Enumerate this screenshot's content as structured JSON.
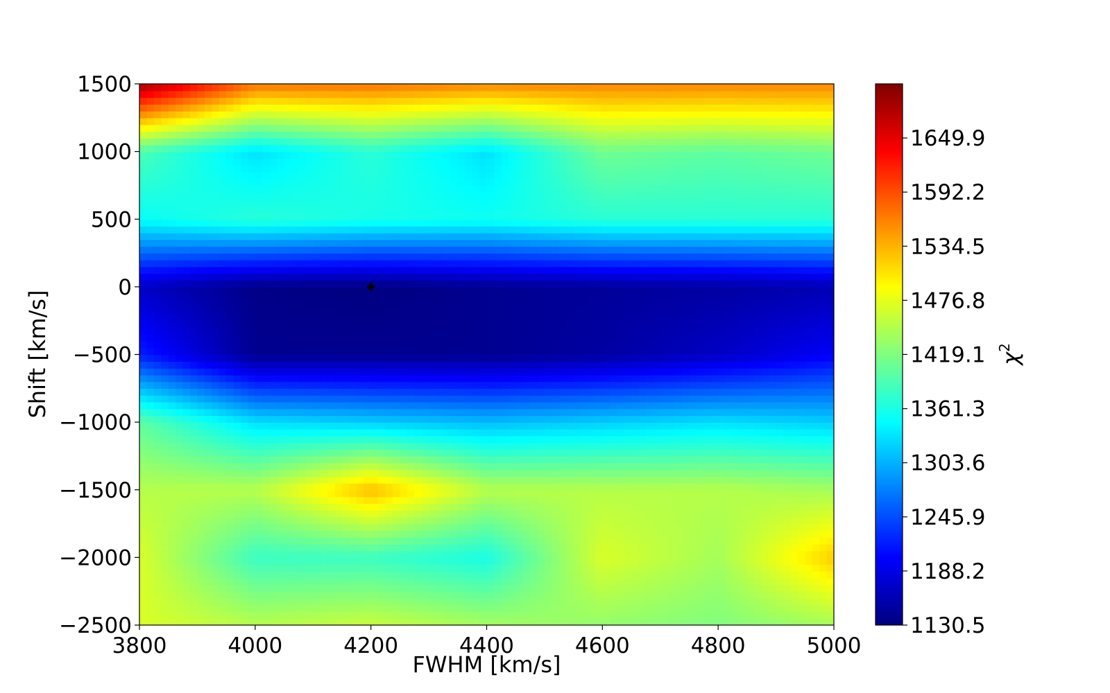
{
  "chart_data": {
    "type": "heatmap",
    "title": "",
    "xlabel": "FWHM [km/s]",
    "ylabel": "Shift [km/s]",
    "colorbar_label": "χ",
    "colorbar_label_superscript": "2",
    "colormap": "jet",
    "xlim": [
      3800,
      5000
    ],
    "ylim": [
      -2500,
      1500
    ],
    "x_ticks": [
      3800,
      4000,
      4200,
      4400,
      4600,
      4800,
      5000
    ],
    "x_tick_labels": [
      "3800",
      "4000",
      "4200",
      "4400",
      "4600",
      "4800",
      "5000"
    ],
    "y_ticks": [
      -2500,
      -2000,
      -1500,
      -1000,
      -500,
      0,
      500,
      1000,
      1500
    ],
    "y_tick_labels": [
      "−2500",
      "−2000",
      "−1500",
      "−1000",
      "−500",
      "0",
      "500",
      "1000",
      "1500"
    ],
    "x_grid": [
      3800,
      4000,
      4200,
      4400,
      4600,
      4800,
      5000
    ],
    "y_grid": [
      -2500,
      -2000,
      -1500,
      -1000,
      -500,
      0,
      500,
      1000,
      1500
    ],
    "z": [
      [
        1470,
        1450,
        1460,
        1440,
        1430,
        1420,
        1440
      ],
      [
        1470,
        1380,
        1380,
        1360,
        1470,
        1440,
        1520
      ],
      [
        1450,
        1450,
        1530,
        1450,
        1450,
        1450,
        1440
      ],
      [
        1400,
        1330,
        1320,
        1310,
        1320,
        1330,
        1320
      ],
      [
        1220,
        1140,
        1140,
        1140,
        1150,
        1170,
        1200
      ],
      [
        1170,
        1135,
        1131,
        1140,
        1145,
        1150,
        1160
      ],
      [
        1350,
        1370,
        1360,
        1355,
        1370,
        1370,
        1370
      ],
      [
        1390,
        1330,
        1370,
        1330,
        1410,
        1400,
        1410
      ],
      [
        1690,
        1570,
        1570,
        1560,
        1560,
        1560,
        1560
      ]
    ],
    "zlim": [
      1130.5,
      1707.6
    ],
    "colorbar_ticks": [
      1130.5,
      1188.2,
      1245.9,
      1303.6,
      1361.3,
      1419.1,
      1476.8,
      1534.5,
      1592.2,
      1649.9
    ],
    "colorbar_tick_labels": [
      "1130.5",
      "1188.2",
      "1245.9",
      "1303.6",
      "1361.3",
      "1419.1",
      "1476.8",
      "1534.5",
      "1592.2",
      "1649.9"
    ],
    "marker": {
      "x": 4200,
      "y": 0,
      "color": "#000000",
      "shape": "diamond"
    },
    "grid": false,
    "legend": "none"
  }
}
